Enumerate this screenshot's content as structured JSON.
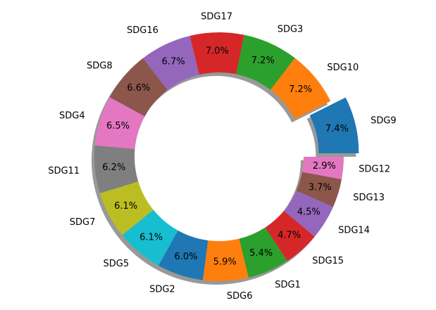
{
  "chart_data": {
    "type": "pie",
    "style": "donut",
    "start_angle_deg": 0,
    "direction": "counterclockwise",
    "shadow": true,
    "exploded": [
      "SDG9"
    ],
    "slices": [
      {
        "label": "SDG9",
        "value": 7.4,
        "pct_label": "7.4%",
        "color": "#1f77b4"
      },
      {
        "label": "SDG10",
        "value": 7.2,
        "pct_label": "7.2%",
        "color": "#ff7f0e"
      },
      {
        "label": "SDG3",
        "value": 7.2,
        "pct_label": "7.2%",
        "color": "#2ca02c"
      },
      {
        "label": "SDG17",
        "value": 7.0,
        "pct_label": "7.0%",
        "color": "#d62728"
      },
      {
        "label": "SDG16",
        "value": 6.7,
        "pct_label": "6.7%",
        "color": "#9467bd"
      },
      {
        "label": "SDG8",
        "value": 6.6,
        "pct_label": "6.6%",
        "color": "#8c564b"
      },
      {
        "label": "SDG4",
        "value": 6.5,
        "pct_label": "6.5%",
        "color": "#e377c2"
      },
      {
        "label": "SDG11",
        "value": 6.2,
        "pct_label": "6.2%",
        "color": "#7f7f7f"
      },
      {
        "label": "SDG7",
        "value": 6.1,
        "pct_label": "6.1%",
        "color": "#bcbd22"
      },
      {
        "label": "SDG5",
        "value": 6.1,
        "pct_label": "6.1%",
        "color": "#17becf"
      },
      {
        "label": "SDG2",
        "value": 6.0,
        "pct_label": "6.0%",
        "color": "#1f77b4"
      },
      {
        "label": "SDG6",
        "value": 5.9,
        "pct_label": "5.9%",
        "color": "#ff7f0e"
      },
      {
        "label": "SDG1",
        "value": 5.4,
        "pct_label": "5.4%",
        "color": "#2ca02c"
      },
      {
        "label": "SDG15",
        "value": 4.7,
        "pct_label": "4.7%",
        "color": "#d62728"
      },
      {
        "label": "SDG14",
        "value": 4.5,
        "pct_label": "4.5%",
        "color": "#9467bd"
      },
      {
        "label": "SDG13",
        "value": 3.7,
        "pct_label": "3.7%",
        "color": "#8c564b"
      },
      {
        "label": "SDG12",
        "value": 2.9,
        "pct_label": "2.9%",
        "color": "#e377c2"
      }
    ]
  }
}
